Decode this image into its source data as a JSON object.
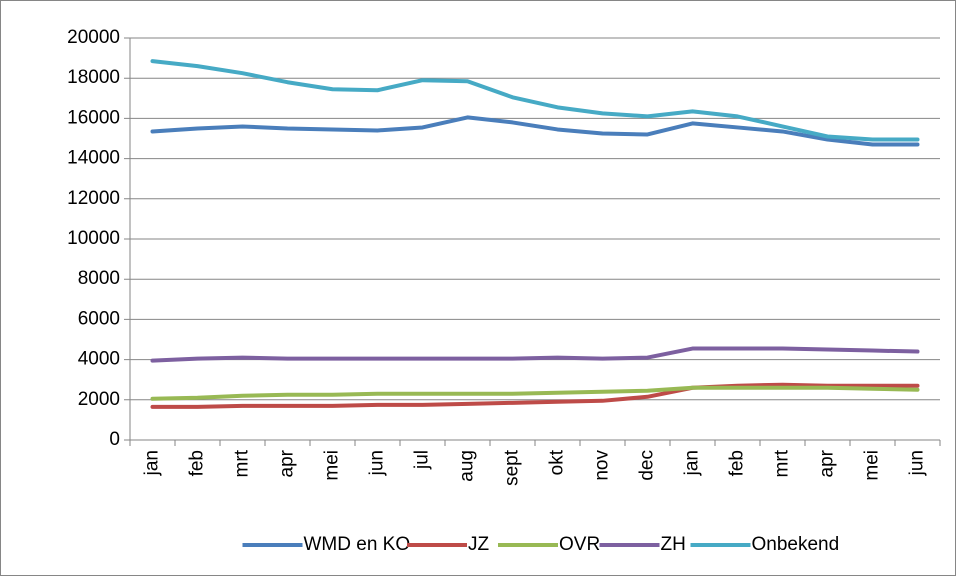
{
  "chart_data": {
    "type": "line",
    "categories": [
      "jan",
      "feb",
      "mrt",
      "apr",
      "mei",
      "jun",
      "jul",
      "aug",
      "sept",
      "okt",
      "nov",
      "dec",
      "jan",
      "feb",
      "mrt",
      "apr",
      "mei",
      "jun"
    ],
    "series": [
      {
        "name": "WMD en KO",
        "color": "#4a7ebb",
        "values": [
          15350,
          15500,
          15600,
          15500,
          15450,
          15400,
          15550,
          16050,
          15800,
          15450,
          15250,
          15200,
          15750,
          15550,
          15350,
          14950,
          14700,
          14700
        ]
      },
      {
        "name": "JZ",
        "color": "#be4b48",
        "values": [
          1650,
          1650,
          1700,
          1700,
          1700,
          1750,
          1750,
          1800,
          1850,
          1900,
          1950,
          2150,
          2600,
          2700,
          2750,
          2700,
          2700,
          2700
        ]
      },
      {
        "name": "OVR",
        "color": "#98b954",
        "values": [
          2050,
          2100,
          2200,
          2250,
          2250,
          2300,
          2300,
          2300,
          2300,
          2350,
          2400,
          2450,
          2600,
          2600,
          2600,
          2600,
          2550,
          2500
        ]
      },
      {
        "name": "ZH",
        "color": "#7d60a0",
        "values": [
          3950,
          4050,
          4100,
          4050,
          4050,
          4050,
          4050,
          4050,
          4050,
          4100,
          4050,
          4100,
          4550,
          4550,
          4550,
          4500,
          4450,
          4400
        ]
      },
      {
        "name": "Onbekend",
        "color": "#46aac5",
        "values": [
          18850,
          18600,
          18250,
          17800,
          17450,
          17400,
          17900,
          17850,
          17050,
          16550,
          16250,
          16100,
          16350,
          16100,
          15600,
          15100,
          14950,
          14950
        ]
      }
    ],
    "ylim": [
      0,
      20000
    ],
    "yticks": [
      0,
      2000,
      4000,
      6000,
      8000,
      10000,
      12000,
      14000,
      16000,
      18000,
      20000
    ],
    "grid": true,
    "legend": "bottom"
  }
}
